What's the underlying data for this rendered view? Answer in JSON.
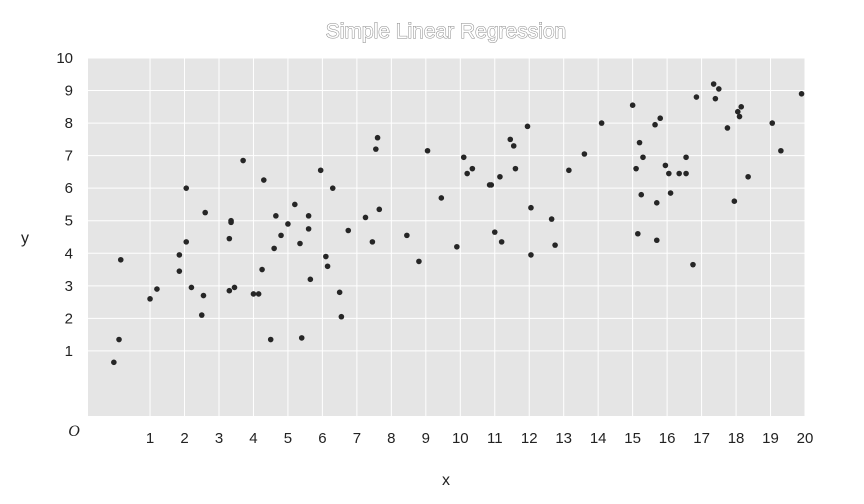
{
  "chart_data": {
    "type": "scatter",
    "title": "Simple Linear Regression",
    "xlabel": "x",
    "ylabel": "y",
    "origin_label": "O",
    "xlim": [
      -0.8,
      20
    ],
    "ylim": [
      -1,
      10
    ],
    "x_ticks": [
      1,
      2,
      3,
      4,
      5,
      6,
      7,
      8,
      9,
      10,
      11,
      12,
      13,
      14,
      15,
      16,
      17,
      18,
      19,
      20
    ],
    "y_ticks": [
      1,
      2,
      3,
      4,
      5,
      6,
      7,
      8,
      9,
      10
    ],
    "grid": true,
    "background": "#e5e5e5",
    "point_color": "#262626",
    "series": [
      {
        "points": [
          [
            -0.05,
            0.65
          ],
          [
            0.1,
            1.35
          ],
          [
            0.15,
            3.8
          ],
          [
            1.0,
            2.6
          ],
          [
            1.2,
            2.9
          ],
          [
            1.85,
            3.45
          ],
          [
            1.85,
            3.95
          ],
          [
            2.05,
            4.35
          ],
          [
            2.05,
            6.0
          ],
          [
            2.2,
            2.95
          ],
          [
            2.5,
            2.1
          ],
          [
            2.55,
            2.7
          ],
          [
            2.6,
            5.25
          ],
          [
            3.3,
            2.85
          ],
          [
            3.3,
            4.45
          ],
          [
            3.35,
            4.95
          ],
          [
            3.35,
            5.0
          ],
          [
            3.45,
            2.95
          ],
          [
            3.7,
            6.85
          ],
          [
            4.0,
            2.75
          ],
          [
            4.15,
            2.75
          ],
          [
            4.25,
            3.5
          ],
          [
            4.3,
            6.25
          ],
          [
            4.5,
            1.35
          ],
          [
            4.6,
            4.15
          ],
          [
            4.65,
            5.15
          ],
          [
            4.8,
            4.55
          ],
          [
            5.0,
            4.9
          ],
          [
            5.2,
            5.5
          ],
          [
            5.35,
            4.3
          ],
          [
            5.4,
            1.4
          ],
          [
            5.6,
            4.75
          ],
          [
            5.6,
            5.15
          ],
          [
            5.65,
            3.2
          ],
          [
            5.95,
            6.55
          ],
          [
            6.1,
            3.9
          ],
          [
            6.15,
            3.6
          ],
          [
            6.3,
            6.0
          ],
          [
            6.5,
            2.8
          ],
          [
            6.55,
            2.05
          ],
          [
            6.75,
            4.7
          ],
          [
            7.25,
            5.1
          ],
          [
            7.45,
            4.35
          ],
          [
            7.55,
            7.2
          ],
          [
            7.6,
            7.55
          ],
          [
            7.65,
            5.35
          ],
          [
            8.45,
            4.55
          ],
          [
            8.8,
            3.75
          ],
          [
            9.05,
            7.15
          ],
          [
            9.45,
            5.7
          ],
          [
            9.9,
            4.2
          ],
          [
            10.1,
            6.95
          ],
          [
            10.2,
            6.45
          ],
          [
            10.35,
            6.6
          ],
          [
            10.85,
            6.1
          ],
          [
            10.9,
            6.1
          ],
          [
            11.0,
            4.65
          ],
          [
            11.15,
            6.35
          ],
          [
            11.2,
            4.35
          ],
          [
            11.45,
            7.5
          ],
          [
            11.55,
            7.3
          ],
          [
            11.6,
            6.6
          ],
          [
            11.95,
            7.9
          ],
          [
            12.05,
            3.95
          ],
          [
            12.05,
            5.4
          ],
          [
            12.65,
            5.05
          ],
          [
            12.75,
            4.25
          ],
          [
            13.15,
            6.55
          ],
          [
            13.6,
            7.05
          ],
          [
            14.1,
            8.0
          ],
          [
            15.0,
            8.55
          ],
          [
            15.1,
            6.6
          ],
          [
            15.15,
            4.6
          ],
          [
            15.2,
            7.4
          ],
          [
            15.25,
            5.8
          ],
          [
            15.3,
            6.95
          ],
          [
            15.65,
            7.95
          ],
          [
            15.7,
            4.4
          ],
          [
            15.7,
            5.55
          ],
          [
            15.8,
            8.15
          ],
          [
            15.95,
            6.7
          ],
          [
            16.05,
            6.45
          ],
          [
            16.1,
            5.85
          ],
          [
            16.35,
            6.45
          ],
          [
            16.55,
            6.45
          ],
          [
            16.55,
            6.95
          ],
          [
            16.75,
            3.65
          ],
          [
            16.85,
            8.8
          ],
          [
            17.35,
            9.2
          ],
          [
            17.4,
            8.75
          ],
          [
            17.5,
            9.05
          ],
          [
            17.75,
            7.85
          ],
          [
            17.95,
            5.6
          ],
          [
            18.05,
            8.35
          ],
          [
            18.1,
            8.2
          ],
          [
            18.15,
            8.5
          ],
          [
            18.35,
            6.35
          ],
          [
            19.05,
            8.0
          ],
          [
            19.3,
            7.15
          ],
          [
            19.9,
            8.9
          ]
        ]
      }
    ]
  }
}
